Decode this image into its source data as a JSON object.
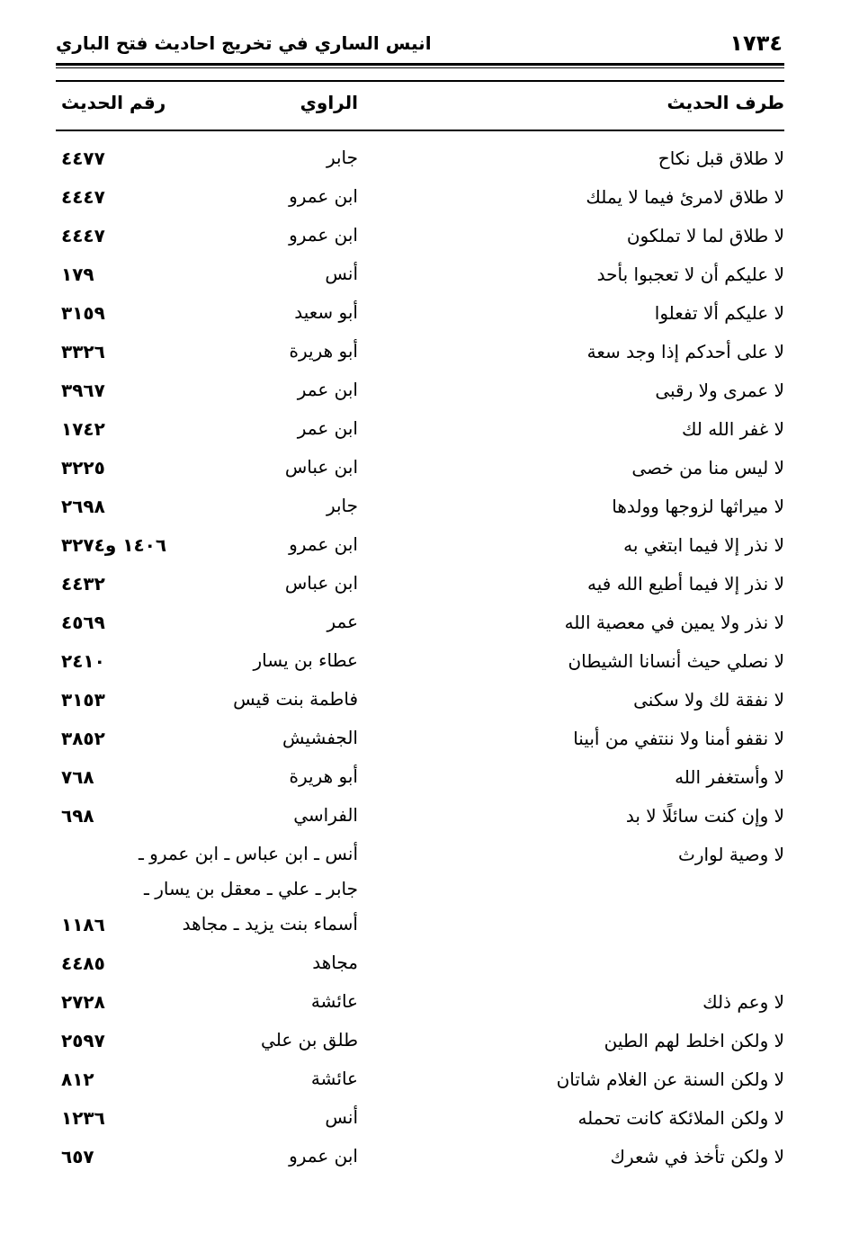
{
  "header": {
    "page_number": "١٧٣٤",
    "book_title": "انيس الساري في تخريج احاديث فتح الباري"
  },
  "columns": {
    "hadith": "طرف الحديث",
    "narrator": "الراوي",
    "number": "رقم الحديث"
  },
  "rows": [
    {
      "text": "لا طلاق قبل نكاح",
      "narrator": [
        "جابر"
      ],
      "number": "٤٤٧٧"
    },
    {
      "text": "لا طلاق لامرئ فيما لا يملك",
      "narrator": [
        "ابن عمرو"
      ],
      "number": "٤٤٤٧"
    },
    {
      "text": "لا طلاق لما لا تملكون",
      "narrator": [
        "ابن عمرو"
      ],
      "number": "٤٤٤٧"
    },
    {
      "text": "لا عليكم أن لا تعجبوا بأحد",
      "narrator": [
        "أنس"
      ],
      "number": "١٧٩"
    },
    {
      "text": "لا عليكم ألا تفعلوا",
      "narrator": [
        "أبو سعيد"
      ],
      "number": "٣١٥٩"
    },
    {
      "text": "لا على أحدكم إذا وجد سعة",
      "narrator": [
        "أبو هريرة"
      ],
      "number": "٣٣٢٦"
    },
    {
      "text": "لا عمرى ولا رقبى",
      "narrator": [
        "ابن عمر"
      ],
      "number": "٣٩٦٧"
    },
    {
      "text": "لا غفر الله لك",
      "narrator": [
        "ابن عمر"
      ],
      "number": "١٧٤٢"
    },
    {
      "text": "لا ليس منا من خصى",
      "narrator": [
        "ابن عباس"
      ],
      "number": "٣٢٢٥"
    },
    {
      "text": "لا ميراثها لزوجها وولدها",
      "narrator": [
        "جابر"
      ],
      "number": "٢٦٩٨"
    },
    {
      "text": "لا نذر إلا فيما ابتغي به",
      "narrator": [
        "ابن عمرو"
      ],
      "number": "١٤٠٦ و٣٢٧٤"
    },
    {
      "text": "لا نذر إلا فيما أطيع الله فيه",
      "narrator": [
        "ابن عباس"
      ],
      "number": "٤٤٣٢"
    },
    {
      "text": "لا نذر ولا يمين في معصية الله",
      "narrator": [
        "عمر"
      ],
      "number": "٤٥٦٩"
    },
    {
      "text": "لا نصلي حيث أنسانا الشيطان",
      "narrator": [
        "عطاء بن يسار"
      ],
      "number": "٢٤١٠"
    },
    {
      "text": "لا نفقة لك ولا سكنى",
      "narrator": [
        "فاطمة بنت قيس"
      ],
      "number": "٣١٥٣"
    },
    {
      "text": "لا نقفو أمنا ولا ننتفي من أبينا",
      "narrator": [
        "الجفشيش"
      ],
      "number": "٣٨٥٢"
    },
    {
      "text": "لا وأستغفر الله",
      "narrator": [
        "أبو هريرة"
      ],
      "number": "٧٦٨"
    },
    {
      "text": "لا وإن كنت سائلًا لا بد",
      "narrator": [
        "الفراسي"
      ],
      "number": "٦٩٨"
    },
    {
      "text": "لا وصية لوارث",
      "narrator": [
        "أنس ـ ابن عباس ـ ابن عمرو ـ",
        "جابر ـ علي ـ معقل بن يسار ـ",
        "أسماء بنت يزيد ـ مجاهد"
      ],
      "number": "١١٨٦"
    },
    {
      "text": "",
      "narrator": [
        "مجاهد"
      ],
      "number": "٤٤٨٥"
    },
    {
      "text": "لا وعم ذلك",
      "narrator": [
        "عائشة"
      ],
      "number": "٢٧٢٨"
    },
    {
      "text": "لا ولكن اخلط لهم الطين",
      "narrator": [
        "طلق بن علي"
      ],
      "number": "٢٥٩٧"
    },
    {
      "text": "لا ولكن السنة عن الغلام شاتان",
      "narrator": [
        "عائشة"
      ],
      "number": "٨١٢"
    },
    {
      "text": "لا ولكن الملائكة كانت تحمله",
      "narrator": [
        "أنس"
      ],
      "number": "١٢٣٦"
    },
    {
      "text": "لا ولكن تأخذ في شعرك",
      "narrator": [
        "ابن عمرو"
      ],
      "number": "٦٥٧"
    }
  ]
}
